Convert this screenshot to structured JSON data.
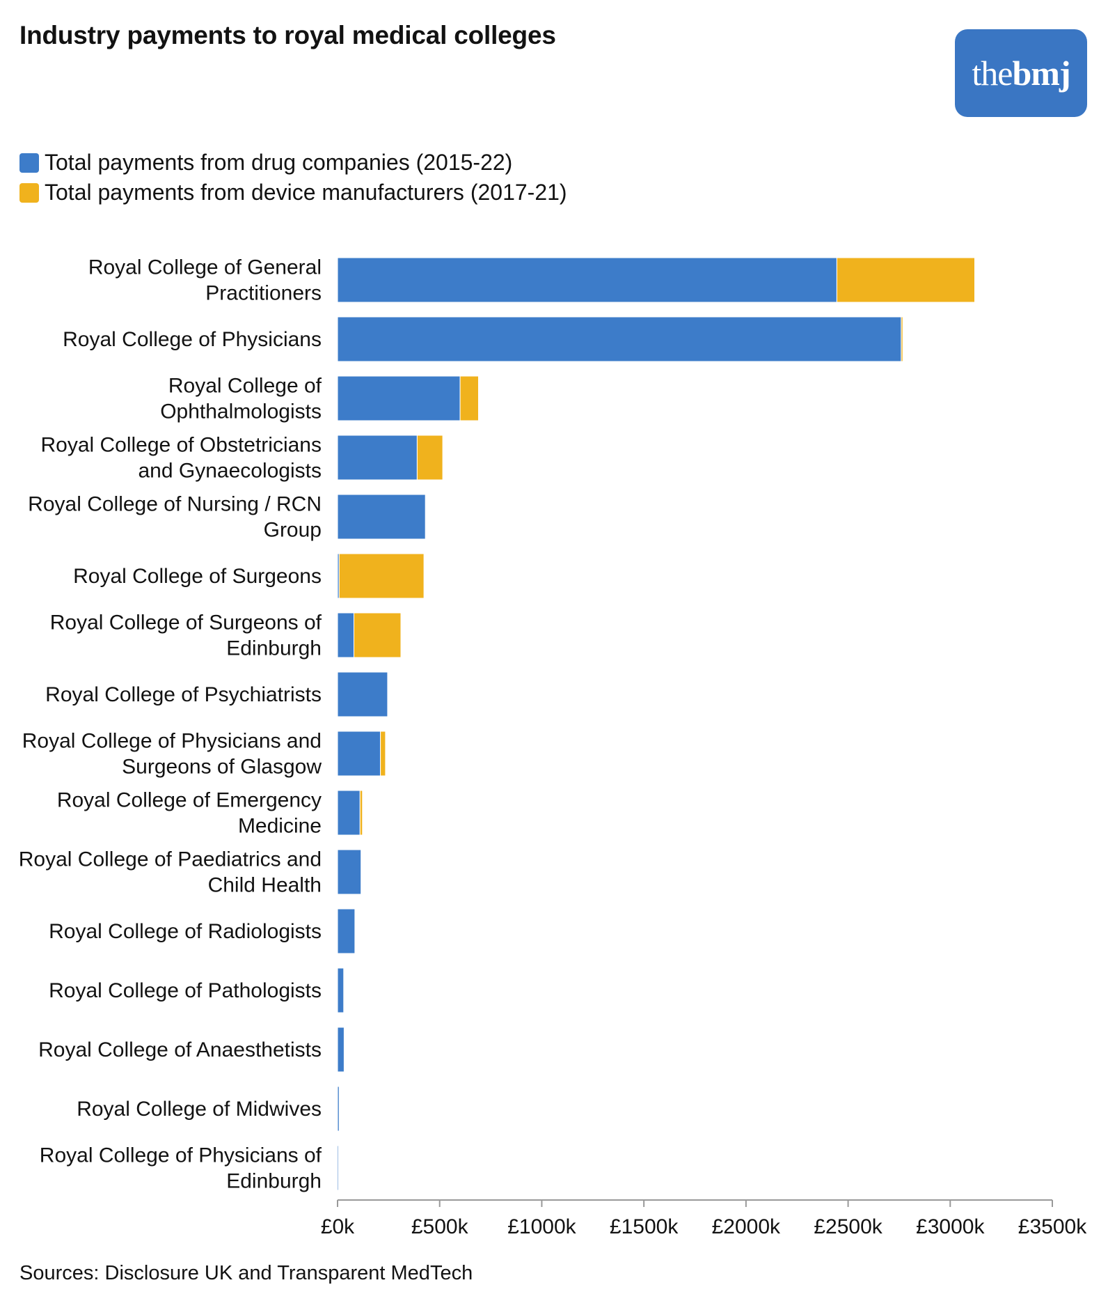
{
  "header": {
    "title": "Industry payments to royal medical colleges",
    "logo_light": "the",
    "logo_bold": "bmj"
  },
  "colors": {
    "drug": "#3d7cc9",
    "device": "#f0b21d",
    "logo_bg": "#3a76c3",
    "axis": "#999999"
  },
  "footer": {
    "source": "Sources: Disclosure UK and Transparent MedTech"
  },
  "chart_data": {
    "type": "bar",
    "orientation": "horizontal",
    "stacked": true,
    "title": "Industry payments to royal medical colleges",
    "xlabel": "",
    "ylabel": "",
    "xlim": [
      0,
      3500000
    ],
    "x_ticks": [
      0,
      500000,
      1000000,
      1500000,
      2000000,
      2500000,
      3000000,
      3500000
    ],
    "x_tick_labels": [
      "£0k",
      "£500k",
      "£1000k",
      "£1500k",
      "£2000k",
      "£2500k",
      "£3000k",
      "£3500k"
    ],
    "grid": false,
    "legend_position": "top-left",
    "categories": [
      [
        "Royal College of General",
        "Practitioners"
      ],
      [
        "Royal College of Physicians"
      ],
      [
        "Royal College of",
        "Ophthalmologists"
      ],
      [
        "Royal College of Obstetricians",
        "and Gynaecologists"
      ],
      [
        "Royal College of Nursing / RCN",
        "Group"
      ],
      [
        "Royal College of Surgeons"
      ],
      [
        "Royal College of Surgeons of",
        "Edinburgh"
      ],
      [
        "Royal College of Psychiatrists"
      ],
      [
        "Royal College of Physicians and",
        "Surgeons of Glasgow"
      ],
      [
        "Royal College of Emergency",
        "Medicine"
      ],
      [
        "Royal College of Paediatrics and",
        "Child Health"
      ],
      [
        "Royal College of Radiologists"
      ],
      [
        "Royal College of Pathologists"
      ],
      [
        "Royal College of Anaesthetists"
      ],
      [
        "Royal College of Midwives"
      ],
      [
        "Royal College of Physicians of",
        "Edinburgh"
      ]
    ],
    "series": [
      {
        "name": "Total payments from drug companies (2015-22)",
        "color": "#3d7cc9",
        "values": [
          2445000,
          2760000,
          600000,
          390000,
          430000,
          8000,
          80000,
          245000,
          210000,
          110000,
          115000,
          85000,
          30000,
          32000,
          8000,
          5000
        ]
      },
      {
        "name": "Total payments from device manufacturers (2017-21)",
        "color": "#f0b21d",
        "values": [
          675000,
          8000,
          90000,
          125000,
          0,
          415000,
          230000,
          0,
          25000,
          12000,
          0,
          0,
          0,
          0,
          0,
          0
        ]
      }
    ]
  }
}
